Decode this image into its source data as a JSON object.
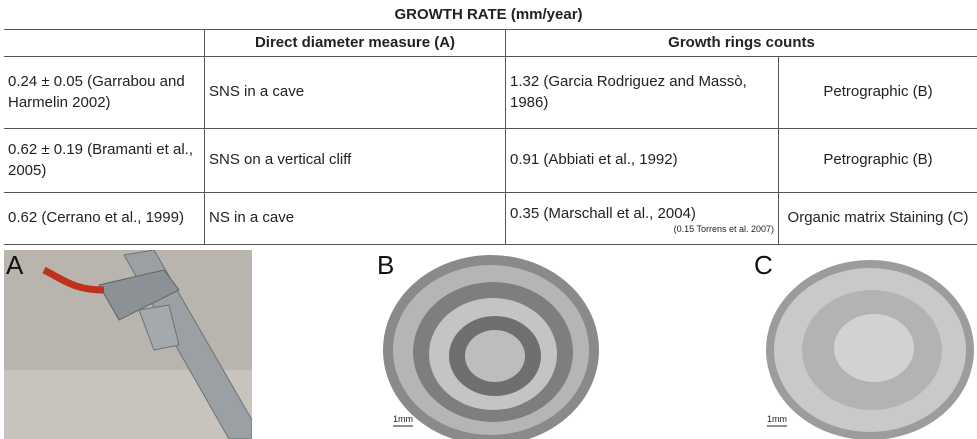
{
  "title": "GROWTH RATE (mm/year)",
  "table": {
    "header": {
      "direct": "Direct diameter measure (A)",
      "rings": "Growth rings counts"
    },
    "rows": [
      [
        "0.24 ± 0.05 (Garrabou and Harmelin 2002)",
        "SNS in a cave",
        "1.32 (Garcia Rodriguez and Massò, 1986)",
        "Petrographic (B)"
      ],
      [
        "0.62 ± 0.19 (Bramanti et al., 2005)",
        "SNS on a vertical cliff",
        "0.91 (Abbiati et al., 1992)",
        "Petrographic (B)"
      ],
      [
        "0.62 (Cerrano et al., 1999)",
        "NS in a cave",
        "0.35 (Marschall et al., 2004)",
        "Organic matrix Staining (C)"
      ]
    ],
    "note": "(0.15 Torrens et al. 2007)"
  },
  "panels": {
    "a": "A",
    "b": "B",
    "c": "C",
    "b_scale": "1mm",
    "c_scale": "1mm"
  }
}
